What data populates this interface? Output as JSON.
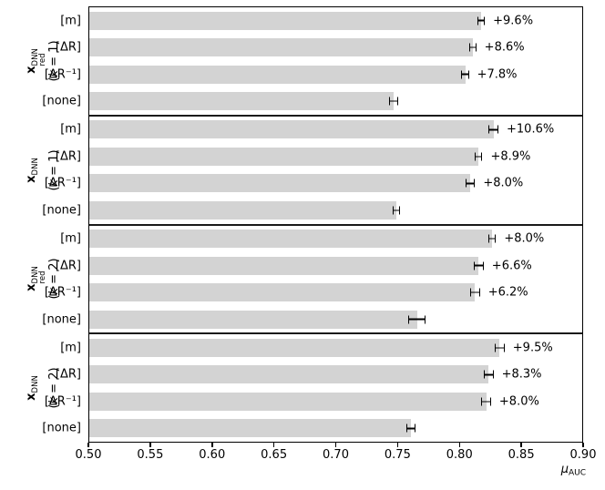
{
  "figure": {
    "background": "#ffffff",
    "bar_color": "#d3d3d3",
    "axis_color": "#000000",
    "annotation_color": "#000000"
  },
  "chart_data": {
    "type": "bar",
    "orientation": "horizontal",
    "title": "",
    "xlabel": {
      "var": "μ",
      "sub": "AUC"
    },
    "xlim": [
      0.5,
      0.9
    ],
    "xticks": [
      "0.50",
      "0.55",
      "0.60",
      "0.65",
      "0.70",
      "0.75",
      "0.80",
      "0.85",
      "0.90"
    ],
    "grid": false,
    "legend": null,
    "groups": [
      {
        "axis_label": {
          "var": "x",
          "sup": "DNN",
          "sub": "red",
          "paren_prefix": "(",
          "paren_var": "k",
          "paren_suffix": " = 1)"
        },
        "bars": [
          {
            "category": "[m]",
            "value": 0.818,
            "xerr": 0.003,
            "annotation": "+9.6%"
          },
          {
            "category": "[ΔR]",
            "value": 0.811,
            "xerr": 0.003,
            "annotation": "+8.6%"
          },
          {
            "category": "[ΔR⁻¹]",
            "value": 0.805,
            "xerr": 0.003,
            "annotation": "+7.8%"
          },
          {
            "category": "[none]",
            "value": 0.747,
            "xerr": 0.004,
            "annotation": ""
          }
        ]
      },
      {
        "axis_label": {
          "var": "x",
          "sup": "DNN",
          "sub": "",
          "paren_prefix": "(",
          "paren_var": "k",
          "paren_suffix": " = 1)"
        },
        "bars": [
          {
            "category": "[m]",
            "value": 0.828,
            "xerr": 0.004,
            "annotation": "+10.6%"
          },
          {
            "category": "[ΔR]",
            "value": 0.816,
            "xerr": 0.003,
            "annotation": "+8.9%"
          },
          {
            "category": "[ΔR⁻¹]",
            "value": 0.809,
            "xerr": 0.004,
            "annotation": "+8.0%"
          },
          {
            "category": "[none]",
            "value": 0.749,
            "xerr": 0.003,
            "annotation": ""
          }
        ]
      },
      {
        "axis_label": {
          "var": "x",
          "sup": "DNN",
          "sub": "red",
          "paren_prefix": "(",
          "paren_var": "k",
          "paren_suffix": " = 2)"
        },
        "bars": [
          {
            "category": "[m]",
            "value": 0.827,
            "xerr": 0.003,
            "annotation": "+8.0%"
          },
          {
            "category": "[ΔR]",
            "value": 0.816,
            "xerr": 0.004,
            "annotation": "+6.6%"
          },
          {
            "category": "[ΔR⁻¹]",
            "value": 0.813,
            "xerr": 0.004,
            "annotation": "+6.2%"
          },
          {
            "category": "[none]",
            "value": 0.766,
            "xerr": 0.007,
            "annotation": ""
          }
        ]
      },
      {
        "axis_label": {
          "var": "x",
          "sup": "DNN",
          "sub": "",
          "paren_prefix": "(",
          "paren_var": "k",
          "paren_suffix": " = 2)"
        },
        "bars": [
          {
            "category": "[m]",
            "value": 0.833,
            "xerr": 0.004,
            "annotation": "+9.5%"
          },
          {
            "category": "[ΔR]",
            "value": 0.824,
            "xerr": 0.004,
            "annotation": "+8.3%"
          },
          {
            "category": "[ΔR⁻¹]",
            "value": 0.822,
            "xerr": 0.004,
            "annotation": "+8.0%"
          },
          {
            "category": "[none]",
            "value": 0.761,
            "xerr": 0.004,
            "annotation": ""
          }
        ]
      }
    ]
  }
}
